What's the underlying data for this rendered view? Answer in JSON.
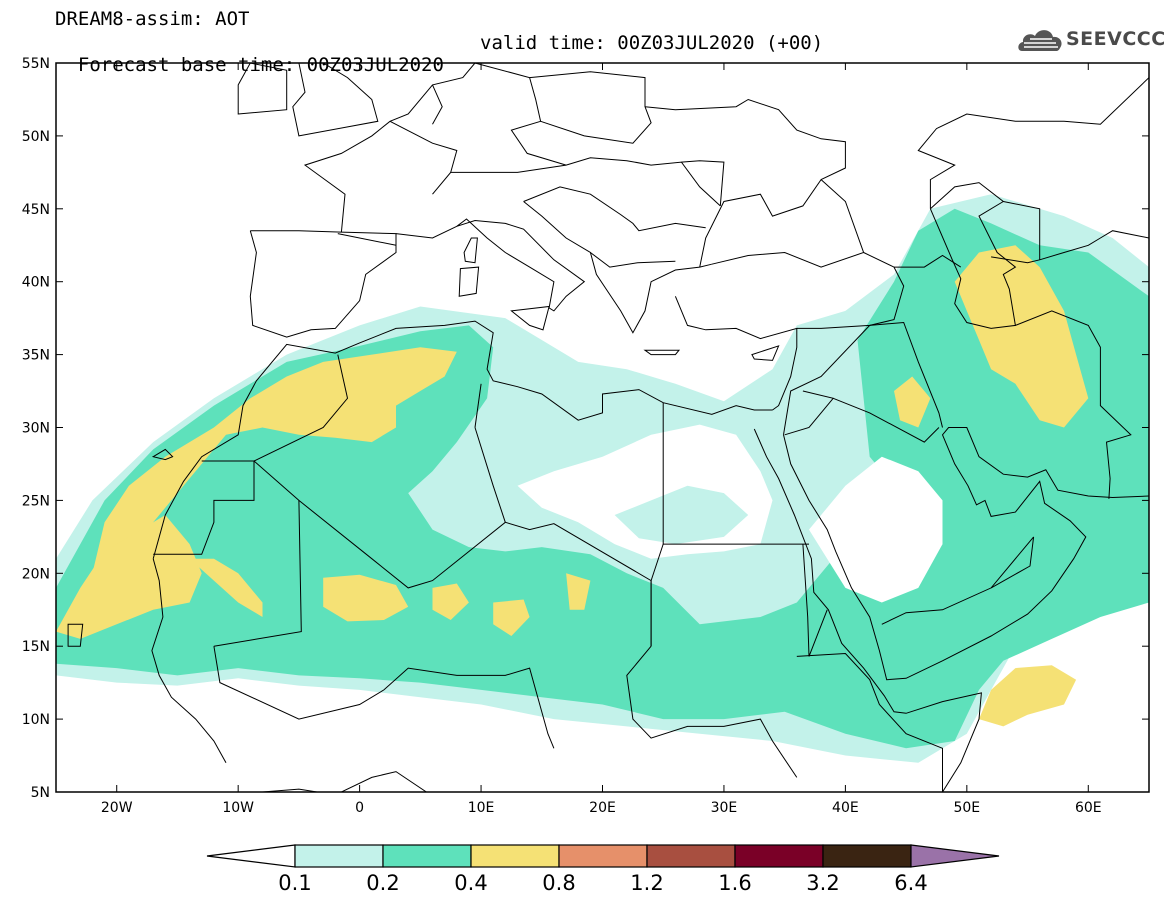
{
  "header": {
    "title_line1": "DREAM8-assim: AOT",
    "title_line2": "Forecast base time: 00Z03JUL2020",
    "valid_time": "valid time: 00Z03JUL2020 (+00)",
    "logo_text": "SEEVCCC"
  },
  "map": {
    "projection": "lat-lon",
    "lon_range": [
      -25,
      65
    ],
    "lat_range": [
      5,
      55
    ],
    "lat_ticks": [
      {
        "value": 55,
        "label": "55N"
      },
      {
        "value": 50,
        "label": "50N"
      },
      {
        "value": 45,
        "label": "45N"
      },
      {
        "value": 40,
        "label": "40N"
      },
      {
        "value": 35,
        "label": "35N"
      },
      {
        "value": 30,
        "label": "30N"
      },
      {
        "value": 25,
        "label": "25N"
      },
      {
        "value": 20,
        "label": "20N"
      },
      {
        "value": 15,
        "label": "15N"
      },
      {
        "value": 10,
        "label": "10N"
      },
      {
        "value": 5,
        "label": "5N"
      }
    ],
    "lon_ticks": [
      {
        "value": -20,
        "label": "20W"
      },
      {
        "value": -10,
        "label": "10W"
      },
      {
        "value": 0,
        "label": "0"
      },
      {
        "value": 10,
        "label": "10E"
      },
      {
        "value": 20,
        "label": "20E"
      },
      {
        "value": 30,
        "label": "30E"
      },
      {
        "value": 40,
        "label": "40E"
      },
      {
        "value": 50,
        "label": "50E"
      },
      {
        "value": 60,
        "label": "60E"
      }
    ],
    "colors": {
      "c1": "#c3f2ea",
      "c2": "#5ee1bb",
      "c3": "#f5e175",
      "c4": "#e6906a",
      "c5": "#a84f40",
      "c6": "#7a0027",
      "c7": "#3a2412",
      "c8": "#9a72a8"
    }
  },
  "colorbar": {
    "levels": [
      "0.1",
      "0.2",
      "0.4",
      "0.8",
      "1.2",
      "1.6",
      "3.2",
      "6.4"
    ],
    "colors": [
      "#c3f2ea",
      "#5ee1bb",
      "#f5e175",
      "#e6906a",
      "#a84f40",
      "#7a0027",
      "#3a2412"
    ],
    "under_color": "#ffffff",
    "over_color": "#9a72a8"
  }
}
